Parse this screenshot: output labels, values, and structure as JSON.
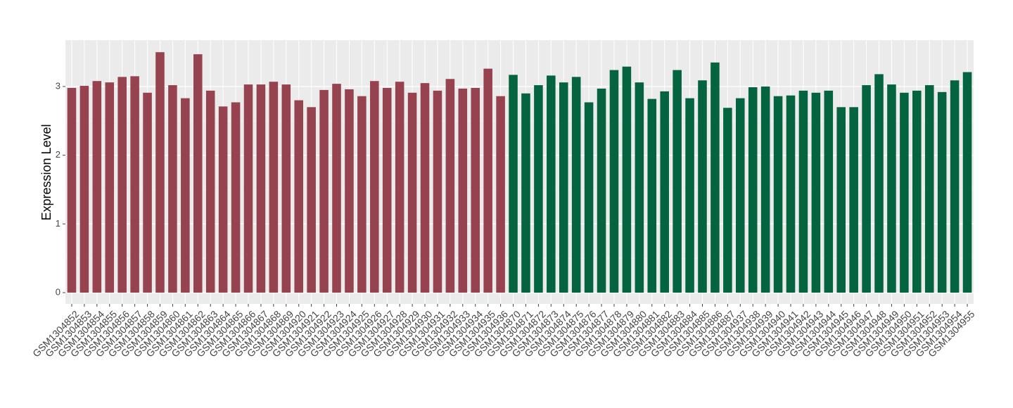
{
  "chart_data": {
    "type": "bar",
    "y_label": "Expression Level",
    "categories": [
      "GSM1304852",
      "GSM1304853",
      "GSM1304854",
      "GSM1304855",
      "GSM1304856",
      "GSM1304857",
      "GSM1304858",
      "GSM1304859",
      "GSM1304860",
      "GSM1304861",
      "GSM1304862",
      "GSM1304863",
      "GSM1304864",
      "GSM1304865",
      "GSM1304866",
      "GSM1304867",
      "GSM1304868",
      "GSM1304869",
      "GSM1304920",
      "GSM1304921",
      "GSM1304922",
      "GSM1304923",
      "GSM1304924",
      "GSM1304925",
      "GSM1304926",
      "GSM1304927",
      "GSM1304928",
      "GSM1304929",
      "GSM1304930",
      "GSM1304931",
      "GSM1304932",
      "GSM1304933",
      "GSM1304934",
      "GSM1304935",
      "GSM1304936",
      "GSM1304870",
      "GSM1304871",
      "GSM1304872",
      "GSM1304873",
      "GSM1304874",
      "GSM1304875",
      "GSM1304876",
      "GSM1304877",
      "GSM1304878",
      "GSM1304879",
      "GSM1304880",
      "GSM1304881",
      "GSM1304882",
      "GSM1304883",
      "GSM1304884",
      "GSM1304885",
      "GSM1304886",
      "GSM1304887",
      "GSM1304937",
      "GSM1304938",
      "GSM1304939",
      "GSM1304940",
      "GSM1304941",
      "GSM1304942",
      "GSM1304943",
      "GSM1304944",
      "GSM1304945",
      "GSM1304946",
      "GSM1304947",
      "GSM1304948",
      "GSM1304949",
      "GSM1304950",
      "GSM1304951",
      "GSM1304952",
      "GSM1304953",
      "GSM1304954",
      "GSM1304955"
    ],
    "values": [
      2.98,
      3.01,
      3.08,
      3.06,
      3.14,
      3.15,
      2.91,
      3.5,
      3.02,
      2.83,
      3.47,
      2.94,
      2.71,
      2.77,
      3.03,
      3.03,
      3.07,
      3.03,
      2.8,
      2.7,
      2.95,
      3.04,
      2.96,
      2.86,
      3.08,
      2.98,
      3.07,
      2.91,
      3.05,
      2.94,
      3.11,
      2.97,
      2.98,
      3.26,
      2.86,
      3.17,
      2.9,
      3.02,
      3.16,
      3.06,
      3.14,
      2.77,
      2.97,
      3.24,
      3.29,
      3.06,
      2.82,
      2.93,
      3.24,
      2.83,
      3.09,
      3.35,
      2.69,
      2.83,
      2.99,
      3.0,
      2.86,
      2.87,
      2.94,
      2.91,
      2.94,
      2.7,
      2.7,
      3.02,
      3.18,
      3.03,
      2.91,
      2.94,
      3.02,
      2.92,
      3.09,
      3.21
    ],
    "colors": [
      "#97434f",
      "#97434f",
      "#97434f",
      "#97434f",
      "#97434f",
      "#97434f",
      "#97434f",
      "#97434f",
      "#97434f",
      "#97434f",
      "#97434f",
      "#97434f",
      "#97434f",
      "#97434f",
      "#97434f",
      "#97434f",
      "#97434f",
      "#97434f",
      "#97434f",
      "#97434f",
      "#97434f",
      "#97434f",
      "#97434f",
      "#97434f",
      "#97434f",
      "#97434f",
      "#97434f",
      "#97434f",
      "#97434f",
      "#97434f",
      "#97434f",
      "#97434f",
      "#97434f",
      "#97434f",
      "#97434f",
      "#046440",
      "#046440",
      "#046440",
      "#046440",
      "#046440",
      "#046440",
      "#046440",
      "#046440",
      "#046440",
      "#046440",
      "#046440",
      "#046440",
      "#046440",
      "#046440",
      "#046440",
      "#046440",
      "#046440",
      "#046440",
      "#046440",
      "#046440",
      "#046440",
      "#046440",
      "#046440",
      "#046440",
      "#046440",
      "#046440",
      "#046440",
      "#046440",
      "#046440",
      "#046440",
      "#046440",
      "#046440",
      "#046440",
      "#046440",
      "#046440",
      "#046440",
      "#046440"
    ],
    "ylim": [
      -0.164,
      3.676
    ],
    "yticks": [
      0,
      1,
      2,
      3
    ],
    "grid": true
  }
}
